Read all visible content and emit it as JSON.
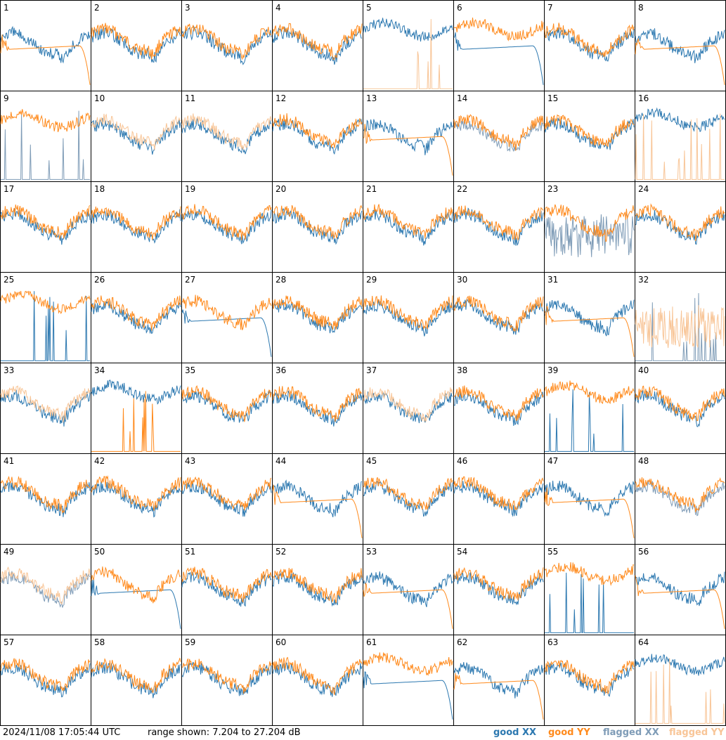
{
  "header": {
    "timestamp": "2024/11/08 17:05:44 UTC",
    "range": "range shown: 7.204 to 27.204 dB"
  },
  "legend": [
    {
      "id": "good_xx",
      "label": "good XX",
      "prefix": "good ",
      "suffix": "XX",
      "color": "#2c78b0"
    },
    {
      "id": "good_yy",
      "label": "good YY",
      "prefix": "good ",
      "suffix": "YY",
      "color": "#ff8a1c"
    },
    {
      "id": "flagged_xx",
      "label": "flagged XX",
      "prefix": "flagged ",
      "suffix": "XX",
      "color": "#7f9cb7"
    },
    {
      "id": "flagged_yy",
      "label": "flagged YY",
      "prefix": "flagged ",
      "suffix": "YY",
      "color": "#f8c597"
    }
  ],
  "chart_data": {
    "type": "line",
    "description_of_layout": "8x8 grid of small spectra panels, numbered 1-64",
    "ylim": [
      7.204,
      27.204
    ],
    "y_unit": "dB",
    "series_kinds": [
      "good XX",
      "good YY",
      "flagged XX",
      "flagged YY"
    ],
    "panels": [
      {
        "n": 1,
        "xx": "good",
        "yy": "good",
        "xx_shape": "normal",
        "yy_shape": "decay"
      },
      {
        "n": 2,
        "xx": "good",
        "yy": "good",
        "xx_shape": "normal",
        "yy_shape": "normal"
      },
      {
        "n": 3,
        "xx": "good",
        "yy": "good",
        "xx_shape": "normal",
        "yy_shape": "normal"
      },
      {
        "n": 4,
        "xx": "good",
        "yy": "good",
        "xx_shape": "normal",
        "yy_shape": "normal"
      },
      {
        "n": 5,
        "xx": "good",
        "yy": "flagged",
        "xx_shape": "high",
        "yy_shape": "spikes"
      },
      {
        "n": 6,
        "xx": "good",
        "yy": "good",
        "xx_shape": "decay",
        "yy_shape": "high"
      },
      {
        "n": 7,
        "xx": "good",
        "yy": "good",
        "xx_shape": "normal",
        "yy_shape": "normal"
      },
      {
        "n": 8,
        "xx": "good",
        "yy": "good",
        "xx_shape": "normal",
        "yy_shape": "decay"
      },
      {
        "n": 9,
        "xx": "flagged",
        "yy": "good",
        "xx_shape": "spikes",
        "yy_shape": "high"
      },
      {
        "n": 10,
        "xx": "good",
        "yy": "flagged",
        "xx_shape": "normal",
        "yy_shape": "normal"
      },
      {
        "n": 11,
        "xx": "good",
        "yy": "flagged",
        "xx_shape": "normal",
        "yy_shape": "normal"
      },
      {
        "n": 12,
        "xx": "good",
        "yy": "good",
        "xx_shape": "normal",
        "yy_shape": "normal"
      },
      {
        "n": 13,
        "xx": "good",
        "yy": "good",
        "xx_shape": "normal",
        "yy_shape": "decay"
      },
      {
        "n": 14,
        "xx": "flagged",
        "yy": "good",
        "xx_shape": "normal",
        "yy_shape": "normal"
      },
      {
        "n": 15,
        "xx": "good",
        "yy": "good",
        "xx_shape": "normal",
        "yy_shape": "normal"
      },
      {
        "n": 16,
        "xx": "good",
        "yy": "flagged",
        "xx_shape": "high",
        "yy_shape": "spikes"
      },
      {
        "n": 17,
        "xx": "good",
        "yy": "good",
        "xx_shape": "normal",
        "yy_shape": "normal"
      },
      {
        "n": 18,
        "xx": "good",
        "yy": "good",
        "xx_shape": "normal",
        "yy_shape": "normal"
      },
      {
        "n": 19,
        "xx": "good",
        "yy": "good",
        "xx_shape": "normal",
        "yy_shape": "normal"
      },
      {
        "n": 20,
        "xx": "good",
        "yy": "good",
        "xx_shape": "normal",
        "yy_shape": "normal"
      },
      {
        "n": 21,
        "xx": "good",
        "yy": "good",
        "xx_shape": "normal",
        "yy_shape": "normal"
      },
      {
        "n": 22,
        "xx": "good",
        "yy": "good",
        "xx_shape": "normal",
        "yy_shape": "normal"
      },
      {
        "n": 23,
        "xx": "flagged",
        "yy": "good",
        "xx_shape": "noisy",
        "yy_shape": "normal"
      },
      {
        "n": 24,
        "xx": "good",
        "yy": "good",
        "xx_shape": "normal",
        "yy_shape": "normal"
      },
      {
        "n": 25,
        "xx": "good",
        "yy": "good",
        "xx_shape": "spikes",
        "yy_shape": "high"
      },
      {
        "n": 26,
        "xx": "good",
        "yy": "good",
        "xx_shape": "normal",
        "yy_shape": "normal"
      },
      {
        "n": 27,
        "xx": "good",
        "yy": "good",
        "xx_shape": "decay",
        "yy_shape": "normal"
      },
      {
        "n": 28,
        "xx": "good",
        "yy": "good",
        "xx_shape": "normal",
        "yy_shape": "normal"
      },
      {
        "n": 29,
        "xx": "good",
        "yy": "good",
        "xx_shape": "normal",
        "yy_shape": "normal"
      },
      {
        "n": 30,
        "xx": "good",
        "yy": "good",
        "xx_shape": "normal",
        "yy_shape": "normal"
      },
      {
        "n": 31,
        "xx": "good",
        "yy": "good",
        "xx_shape": "normal",
        "yy_shape": "decay"
      },
      {
        "n": 32,
        "xx": "flagged",
        "yy": "flagged",
        "xx_shape": "spikes",
        "yy_shape": "noisy"
      },
      {
        "n": 33,
        "xx": "good",
        "yy": "flagged",
        "xx_shape": "normal",
        "yy_shape": "normal"
      },
      {
        "n": 34,
        "xx": "good",
        "yy": "good",
        "xx_shape": "high",
        "yy_shape": "spikes"
      },
      {
        "n": 35,
        "xx": "good",
        "yy": "good",
        "xx_shape": "normal",
        "yy_shape": "normal"
      },
      {
        "n": 36,
        "xx": "good",
        "yy": "good",
        "xx_shape": "normal",
        "yy_shape": "normal"
      },
      {
        "n": 37,
        "xx": "good",
        "yy": "flagged",
        "xx_shape": "normal",
        "yy_shape": "normal"
      },
      {
        "n": 38,
        "xx": "good",
        "yy": "good",
        "xx_shape": "normal",
        "yy_shape": "normal"
      },
      {
        "n": 39,
        "xx": "good",
        "yy": "good",
        "xx_shape": "spikes",
        "yy_shape": "high"
      },
      {
        "n": 40,
        "xx": "good",
        "yy": "good",
        "xx_shape": "normal",
        "yy_shape": "normal"
      },
      {
        "n": 41,
        "xx": "good",
        "yy": "good",
        "xx_shape": "normal",
        "yy_shape": "normal"
      },
      {
        "n": 42,
        "xx": "good",
        "yy": "good",
        "xx_shape": "normal",
        "yy_shape": "normal"
      },
      {
        "n": 43,
        "xx": "good",
        "yy": "good",
        "xx_shape": "normal",
        "yy_shape": "normal"
      },
      {
        "n": 44,
        "xx": "good",
        "yy": "good",
        "xx_shape": "normal",
        "yy_shape": "decay"
      },
      {
        "n": 45,
        "xx": "good",
        "yy": "good",
        "xx_shape": "normal",
        "yy_shape": "normal"
      },
      {
        "n": 46,
        "xx": "good",
        "yy": "good",
        "xx_shape": "normal",
        "yy_shape": "normal"
      },
      {
        "n": 47,
        "xx": "good",
        "yy": "good",
        "xx_shape": "normal",
        "yy_shape": "decay"
      },
      {
        "n": 48,
        "xx": "flagged",
        "yy": "good",
        "xx_shape": "normal",
        "yy_shape": "normal"
      },
      {
        "n": 49,
        "xx": "flagged",
        "yy": "flagged",
        "xx_shape": "normal",
        "yy_shape": "normal"
      },
      {
        "n": 50,
        "xx": "good",
        "yy": "good",
        "xx_shape": "decay",
        "yy_shape": "normal"
      },
      {
        "n": 51,
        "xx": "good",
        "yy": "good",
        "xx_shape": "normal",
        "yy_shape": "normal"
      },
      {
        "n": 52,
        "xx": "good",
        "yy": "good",
        "xx_shape": "normal",
        "yy_shape": "normal"
      },
      {
        "n": 53,
        "xx": "good",
        "yy": "good",
        "xx_shape": "normal",
        "yy_shape": "decay"
      },
      {
        "n": 54,
        "xx": "good",
        "yy": "good",
        "xx_shape": "normal",
        "yy_shape": "normal"
      },
      {
        "n": 55,
        "xx": "good",
        "yy": "good",
        "xx_shape": "spikes",
        "yy_shape": "high"
      },
      {
        "n": 56,
        "xx": "good",
        "yy": "good",
        "xx_shape": "normal",
        "yy_shape": "decay"
      },
      {
        "n": 57,
        "xx": "good",
        "yy": "good",
        "xx_shape": "normal",
        "yy_shape": "normal"
      },
      {
        "n": 58,
        "xx": "good",
        "yy": "good",
        "xx_shape": "normal",
        "yy_shape": "normal"
      },
      {
        "n": 59,
        "xx": "good",
        "yy": "good",
        "xx_shape": "normal",
        "yy_shape": "normal"
      },
      {
        "n": 60,
        "xx": "good",
        "yy": "good",
        "xx_shape": "normal",
        "yy_shape": "normal"
      },
      {
        "n": 61,
        "xx": "good",
        "yy": "good",
        "xx_shape": "decay",
        "yy_shape": "high"
      },
      {
        "n": 62,
        "xx": "good",
        "yy": "good",
        "xx_shape": "normal",
        "yy_shape": "decay"
      },
      {
        "n": 63,
        "xx": "good",
        "yy": "good",
        "xx_shape": "normal",
        "yy_shape": "normal"
      },
      {
        "n": 64,
        "xx": "good",
        "yy": "flagged",
        "xx_shape": "high",
        "yy_shape": "spikes"
      }
    ]
  }
}
